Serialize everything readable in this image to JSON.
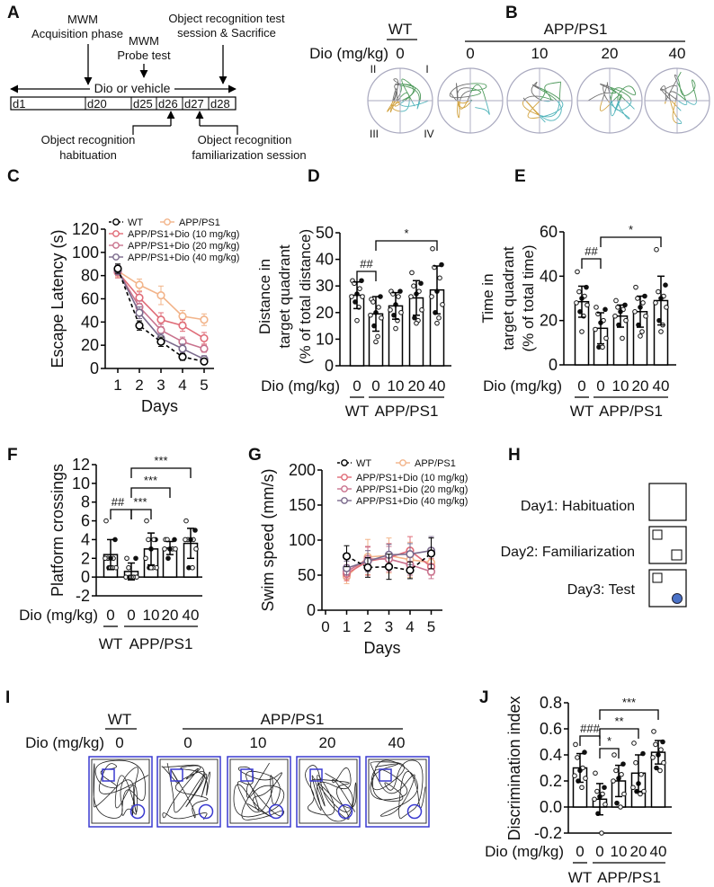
{
  "panels": {
    "A": "A",
    "B": "B",
    "C": "C",
    "D": "D",
    "E": "E",
    "F": "F",
    "G": "G",
    "H": "H",
    "I": "I",
    "J": "J"
  },
  "timeline": {
    "acquisition": {
      "line1": "MWM",
      "line2": "Acquisition phase"
    },
    "probe": {
      "line1": "MWM",
      "line2": "Probe test"
    },
    "test": {
      "line1": "Object recognition test",
      "line2": "session & Sacrifice"
    },
    "habituation": {
      "line1": "Object recognition",
      "line2": "habituation"
    },
    "familiarization": {
      "line1": "Object recognition",
      "line2": "familiarization session"
    },
    "span_label": "Dio or vehicle",
    "days": [
      "d1",
      "d20",
      "d25",
      "d26",
      "d27",
      "d28"
    ]
  },
  "probe_traces": {
    "dose_label": "Dio (mg/kg)",
    "group_wt": "WT",
    "group_app": "APP/PS1",
    "doses": [
      "0",
      "0",
      "10",
      "20",
      "40"
    ],
    "quadrants": {
      "I": "I",
      "II": "II",
      "III": "III",
      "IV": "IV"
    },
    "quadrant_colors": {
      "I": "#4f9a5c",
      "II": "#707070",
      "III": "#d2a341",
      "IV": "#4fb3ba"
    }
  },
  "object_test_design": {
    "days": [
      {
        "label": "Day1: Habituation",
        "objects": []
      },
      {
        "label": "Day2: Familiarization",
        "objects": [
          "square",
          "square"
        ]
      },
      {
        "label": "Day3: Test",
        "objects": [
          "square",
          "circle"
        ]
      }
    ],
    "novel_object_color": "#4a72c8"
  },
  "object_traces": {
    "dose_label": "Dio (mg/kg)",
    "group_wt": "WT",
    "group_app": "APP/PS1",
    "doses": [
      "0",
      "0",
      "10",
      "20",
      "40"
    ],
    "arena_color": "#3a3ad0"
  },
  "chart_data": [
    {
      "panel": "C",
      "type": "line",
      "x": [
        1,
        2,
        3,
        4,
        5
      ],
      "xticks": [
        "1",
        "2",
        "3",
        "4",
        "5"
      ],
      "xlabel": "Days",
      "ylabel": "Escape Latency (s)",
      "ylim": [
        0,
        120
      ],
      "yticks": [
        "0",
        "20",
        "40",
        "60",
        "80",
        "100",
        "120"
      ],
      "legend": "top",
      "series": [
        {
          "name": "WT",
          "color": "#000000",
          "dashed": true,
          "values": [
            86,
            37,
            23,
            10,
            6
          ],
          "error": [
            4,
            4,
            4,
            3,
            2
          ]
        },
        {
          "name": "APP/PS1",
          "color": "#f2b48a",
          "dashed": false,
          "values": [
            84,
            72,
            63,
            45,
            42
          ],
          "error": [
            5,
            5,
            8,
            5,
            5
          ]
        },
        {
          "name": "APP/PS1+Dio (10 mg/kg)",
          "color": "#e06c78",
          "dashed": false,
          "values": [
            83,
            61,
            42,
            37,
            26
          ],
          "error": [
            5,
            5,
            6,
            5,
            5
          ]
        },
        {
          "name": "APP/PS1+Dio (20 mg/kg)",
          "color": "#c9738e",
          "dashed": false,
          "values": [
            84,
            53,
            33,
            23,
            17
          ],
          "error": [
            4,
            5,
            5,
            4,
            3
          ]
        },
        {
          "name": "APP/PS1+Dio (40 mg/kg)",
          "color": "#7a6a8c",
          "dashed": false,
          "values": [
            85,
            48,
            26,
            17,
            8
          ],
          "error": [
            4,
            5,
            4,
            4,
            3
          ]
        }
      ]
    },
    {
      "panel": "D",
      "type": "bar",
      "ylabel_lines": [
        "Distance in",
        "target quadrant",
        "(% of total distance)"
      ],
      "xlabel": "Dio (mg/kg)",
      "categories": [
        "0",
        "0",
        "10",
        "20",
        "40"
      ],
      "groups": [
        {
          "label": "WT",
          "from": 0,
          "to": 0
        },
        {
          "label": "APP/PS1",
          "from": 1,
          "to": 4
        }
      ],
      "ylim": [
        0,
        50
      ],
      "yticks": [
        "0",
        "10",
        "20",
        "30",
        "40",
        "50"
      ],
      "values": [
        26.5,
        19.5,
        22.5,
        25.5,
        28.5
      ],
      "sd": [
        5,
        6.5,
        5,
        6.5,
        9
      ],
      "points": [
        [
          32,
          32,
          31,
          29,
          27,
          26,
          26,
          24,
          22,
          17
        ],
        [
          25,
          26,
          24,
          22,
          20,
          19,
          18,
          15,
          11,
          9
        ],
        [
          28,
          28,
          27,
          26,
          23,
          21,
          20,
          19,
          17,
          14
        ],
        [
          35,
          31,
          30,
          28,
          27,
          26,
          21,
          18,
          17,
          16
        ],
        [
          44,
          38,
          37,
          33,
          28,
          26,
          23,
          20,
          18,
          16
        ]
      ],
      "comparisons": [
        {
          "from": 0,
          "to": 1,
          "label": "##"
        },
        {
          "from": 1,
          "to": 4,
          "label": "*"
        }
      ]
    },
    {
      "panel": "E",
      "type": "bar",
      "ylabel_lines": [
        "Time in",
        "target quadrant",
        "(% of total time)"
      ],
      "xlabel": "Dio (mg/kg)",
      "categories": [
        "0",
        "0",
        "10",
        "20",
        "40"
      ],
      "groups": [
        {
          "label": "WT",
          "from": 0,
          "to": 0
        },
        {
          "label": "APP/PS1",
          "from": 1,
          "to": 4
        }
      ],
      "ylim": [
        0,
        60
      ],
      "yticks": [
        "0",
        "20",
        "40",
        "60"
      ],
      "values": [
        28.5,
        16.5,
        22,
        24,
        29
      ],
      "sd": [
        7,
        7,
        5,
        7,
        11
      ],
      "points": [
        [
          42,
          35,
          33,
          31,
          30,
          28,
          27,
          24,
          22,
          15
        ],
        [
          26,
          25,
          23,
          20,
          19,
          16,
          12,
          8,
          8
        ],
        [
          29,
          27,
          26,
          25,
          24,
          22,
          20,
          18,
          12
        ],
        [
          35,
          31,
          30,
          28,
          26,
          24,
          22,
          18,
          15,
          13
        ],
        [
          52,
          36,
          33,
          31,
          30,
          28,
          26,
          20,
          18,
          15
        ]
      ],
      "comparisons": [
        {
          "from": 0,
          "to": 1,
          "label": "##"
        },
        {
          "from": 1,
          "to": 4,
          "label": "*"
        }
      ]
    },
    {
      "panel": "F",
      "type": "bar",
      "ylabel_lines": [
        "Platform crossings"
      ],
      "xlabel": "Dio (mg/kg)",
      "categories": [
        "0",
        "0",
        "10",
        "20",
        "40"
      ],
      "groups": [
        {
          "label": "WT",
          "from": 0,
          "to": 0
        },
        {
          "label": "APP/PS1",
          "from": 1,
          "to": 4
        }
      ],
      "ylim": [
        -2,
        12
      ],
      "yticks": [
        "-2",
        "0",
        "2",
        "4",
        "6",
        "8",
        "10",
        "12"
      ],
      "values": [
        2.4,
        0.6,
        3.0,
        3.1,
        3.6
      ],
      "sd": [
        1.6,
        0.9,
        1.7,
        0.7,
        1.6
      ],
      "points": [
        [
          6,
          4,
          2,
          2,
          2,
          2,
          1,
          1,
          1,
          1
        ],
        [
          2,
          2,
          1,
          0,
          0,
          0,
          0,
          0,
          0,
          0
        ],
        [
          6,
          4,
          4,
          4,
          3,
          2,
          1,
          1,
          1,
          1
        ],
        [
          4,
          4,
          4,
          3,
          3,
          3,
          3,
          2
        ],
        [
          6,
          5,
          4,
          4,
          4,
          4,
          3,
          1,
          1
        ]
      ],
      "comparisons": [
        {
          "from": 0,
          "to": 1,
          "label": "##"
        },
        {
          "from": 1,
          "to": 2,
          "label": "***"
        },
        {
          "from": 1,
          "to": 3,
          "label": "***"
        },
        {
          "from": 1,
          "to": 4,
          "label": "***"
        }
      ]
    },
    {
      "panel": "G",
      "type": "line",
      "x": [
        1,
        2,
        3,
        4,
        5
      ],
      "xticks": [
        "0",
        "1",
        "2",
        "3",
        "4",
        "5"
      ],
      "xlabel": "Days",
      "ylabel": "Swim speed (mm/s)",
      "ylim": [
        0,
        200
      ],
      "yticks": [
        "0",
        "50",
        "100",
        "150",
        "200"
      ],
      "legend": "top",
      "series": [
        {
          "name": "WT",
          "color": "#000000",
          "dashed": true,
          "values": [
            77,
            61,
            62,
            57,
            81
          ],
          "error": [
            15,
            14,
            18,
            12,
            22
          ]
        },
        {
          "name": "APP/PS1",
          "color": "#f2b48a",
          "dashed": false,
          "values": [
            48,
            76,
            78,
            72,
            68
          ],
          "error": [
            10,
            25,
            25,
            25,
            15
          ]
        },
        {
          "name": "APP/PS1+Dio (10 mg/kg)",
          "color": "#e06c78",
          "dashed": false,
          "values": [
            52,
            70,
            75,
            85,
            62
          ],
          "error": [
            10,
            20,
            20,
            20,
            12
          ]
        },
        {
          "name": "APP/PS1+Dio (20 mg/kg)",
          "color": "#c9738e",
          "dashed": false,
          "values": [
            55,
            73,
            73,
            65,
            55
          ],
          "error": [
            10,
            18,
            18,
            15,
            10
          ]
        },
        {
          "name": "APP/PS1+Dio (40 mg/kg)",
          "color": "#7a6a8c",
          "dashed": false,
          "values": [
            60,
            70,
            79,
            80,
            85
          ],
          "error": [
            10,
            15,
            15,
            15,
            20
          ]
        }
      ]
    },
    {
      "panel": "J",
      "type": "bar",
      "ylabel_lines": [
        "Discrimination index"
      ],
      "xlabel": "Dio (mg/kg)",
      "categories": [
        "0",
        "0",
        "10",
        "20",
        "40"
      ],
      "groups": [
        {
          "label": "WT",
          "from": 0,
          "to": 0
        },
        {
          "label": "APP/PS1",
          "from": 1,
          "to": 4
        }
      ],
      "ylim": [
        -0.2,
        0.8
      ],
      "yticks": [
        "-0.2",
        "0.0",
        "0.2",
        "0.4",
        "0.6",
        "0.8"
      ],
      "values": [
        0.3,
        0.06,
        0.2,
        0.26,
        0.42
      ],
      "sd": [
        0.11,
        0.12,
        0.12,
        0.14,
        0.09
      ],
      "points": [
        [
          0.48,
          0.42,
          0.38,
          0.3,
          0.28,
          0.24,
          0.22,
          0.2,
          0.15
        ],
        [
          0.26,
          0.15,
          0.12,
          0.1,
          0.08,
          0.06,
          0.02,
          -0.05,
          -0.2
        ],
        [
          0.4,
          0.33,
          0.28,
          0.25,
          0.22,
          0.2,
          0.1,
          0.03,
          0.0
        ],
        [
          0.49,
          0.41,
          0.34,
          0.25,
          0.18,
          0.15,
          0.12,
          0.12,
          0.1
        ],
        [
          0.58,
          0.5,
          0.48,
          0.44,
          0.4,
          0.38,
          0.34,
          0.3,
          0.28
        ]
      ],
      "comparisons": [
        {
          "from": 0,
          "to": 1,
          "label": "###"
        },
        {
          "from": 1,
          "to": 2,
          "label": "*"
        },
        {
          "from": 1,
          "to": 3,
          "label": "**"
        },
        {
          "from": 1,
          "to": 4,
          "label": "***"
        }
      ]
    }
  ]
}
